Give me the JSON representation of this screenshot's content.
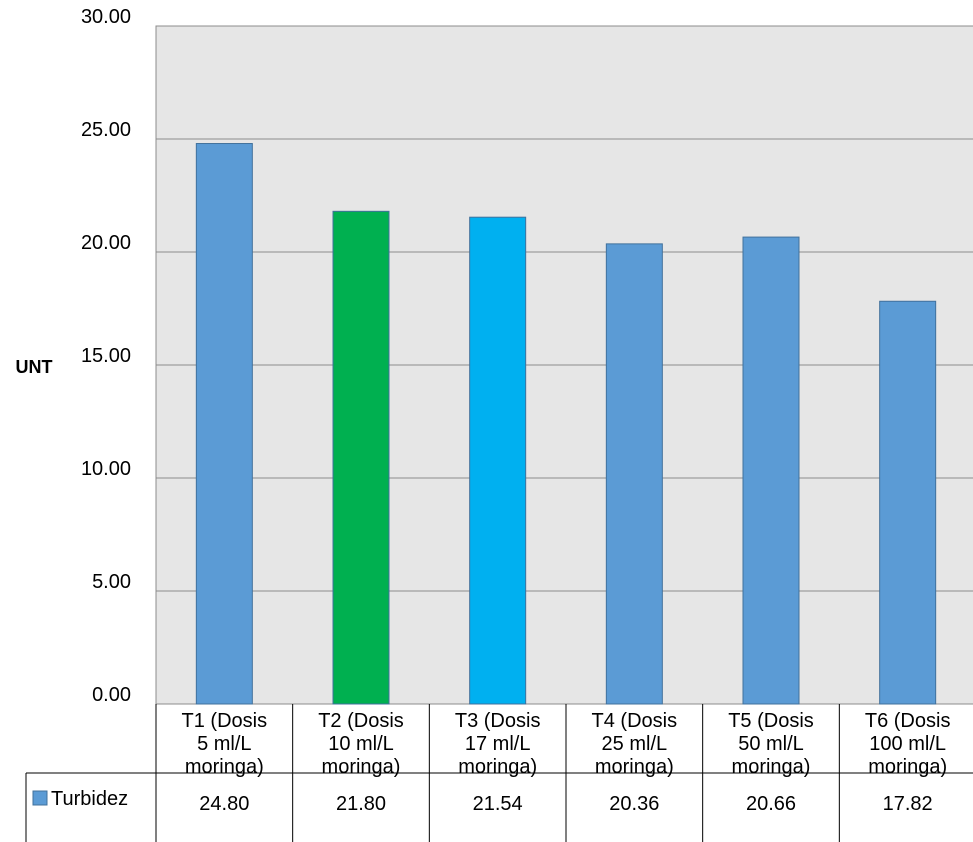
{
  "chart_data": {
    "type": "bar",
    "ylabel": "UNT",
    "ylim": [
      0,
      30
    ],
    "yticks": [
      "0.00",
      "5.00",
      "10.00",
      "15.00",
      "20.00",
      "25.00",
      "30.00"
    ],
    "grid": true,
    "categories": [
      [
        "T1 (Dosis",
        "5 ml/L",
        "moringa)"
      ],
      [
        "T2 (Dosis",
        "10 ml/L",
        "moringa)"
      ],
      [
        "T3 (Dosis",
        "17 ml/L",
        "moringa)"
      ],
      [
        "T4 (Dosis",
        "25 ml/L",
        "moringa)"
      ],
      [
        "T5 (Dosis",
        "50 ml/L",
        "moringa)"
      ],
      [
        "T6 (Dosis",
        "100 ml/L",
        "moringa)"
      ]
    ],
    "series": [
      {
        "name": "Turbidez",
        "values": [
          24.8,
          21.8,
          21.54,
          20.36,
          20.66,
          17.82
        ],
        "value_labels": [
          "24.80",
          "21.80",
          "21.54",
          "20.36",
          "20.66",
          "17.82"
        ],
        "colors": [
          "#5b9bd5",
          "#00b050",
          "#00b0f0",
          "#5b9bd5",
          "#5b9bd5",
          "#5b9bd5"
        ]
      }
    ],
    "legend_position": "data-table",
    "colors": {
      "plot_background": "#e6e6e6",
      "gridline": "#8c8c8c",
      "series": "#5b9bd5"
    }
  }
}
